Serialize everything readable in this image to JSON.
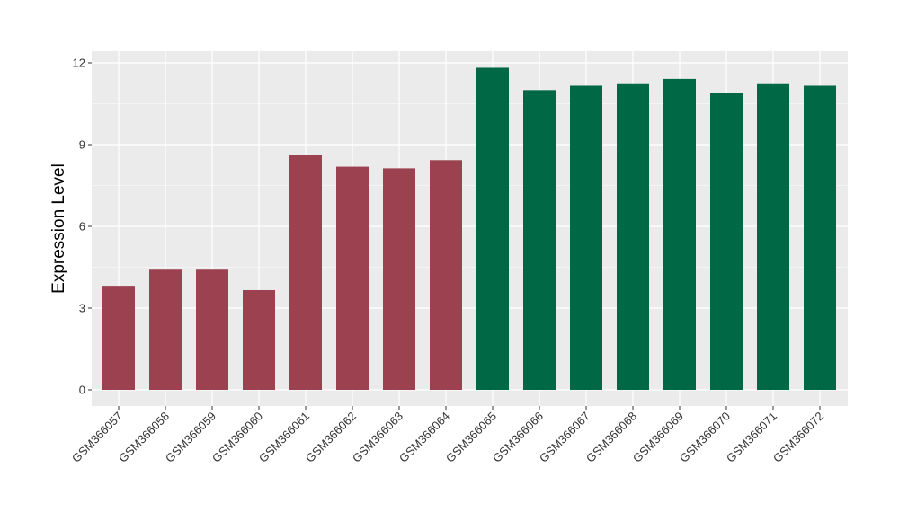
{
  "chart_data": {
    "type": "bar",
    "title": "",
    "xlabel": "",
    "ylabel": "Expression Level",
    "ylim": [
      0,
      12
    ],
    "yticks": [
      0,
      3,
      6,
      9,
      12
    ],
    "grid": true,
    "legend": "none",
    "categories": [
      "GSM366057",
      "GSM366058",
      "GSM366059",
      "GSM366060",
      "GSM366061",
      "GSM366062",
      "GSM366063",
      "GSM366064",
      "GSM366065",
      "GSM366066",
      "GSM366067",
      "GSM366068",
      "GSM366069",
      "GSM366070",
      "GSM366071",
      "GSM366072"
    ],
    "values": [
      3.82,
      4.41,
      4.41,
      3.66,
      8.63,
      8.19,
      8.13,
      8.43,
      11.82,
      11.0,
      11.16,
      11.25,
      11.41,
      10.88,
      11.25,
      11.16
    ],
    "bar_colors": [
      "#9b4150",
      "#9b4150",
      "#9b4150",
      "#9b4150",
      "#9b4150",
      "#9b4150",
      "#9b4150",
      "#9b4150",
      "#006845",
      "#006845",
      "#006845",
      "#006845",
      "#006845",
      "#006845",
      "#006845",
      "#006845"
    ],
    "panel_background": "#ebebeb",
    "grid_color": "#ffffff"
  }
}
